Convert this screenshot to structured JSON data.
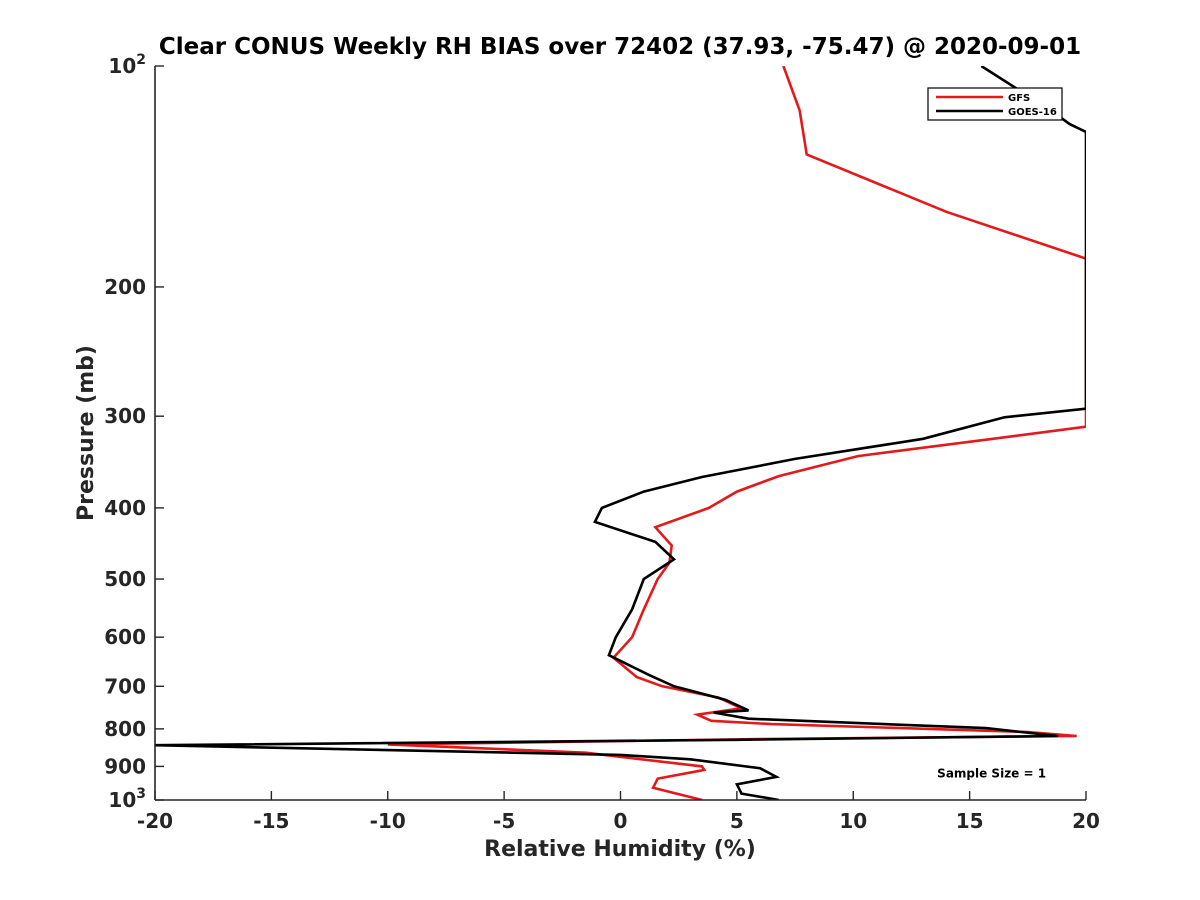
{
  "chart_data": {
    "type": "line",
    "title": "Clear CONUS Weekly RH BIAS over 72402 (37.93, -75.47) @ 2020-09-01",
    "xlabel": "Relative Humidity (%)",
    "ylabel": "Pressure (mb)",
    "xlim": [
      -20,
      20
    ],
    "ylim": [
      100,
      1000
    ],
    "yscale": "log",
    "y_reversed": true,
    "grid": false,
    "legend_position": "top-right",
    "x_ticks": [
      -20,
      -15,
      -10,
      -5,
      0,
      5,
      10,
      15,
      20
    ],
    "x_tick_labels": [
      "-20",
      "-15",
      "-10",
      "-5",
      "0",
      "5",
      "10",
      "15",
      "20"
    ],
    "y_ticks": [
      100,
      200,
      300,
      400,
      500,
      600,
      700,
      800,
      900,
      1000
    ],
    "y_tick_labels": [
      {
        "base": "10",
        "exp": "2"
      },
      {
        "base": "200",
        "exp": ""
      },
      {
        "base": "300",
        "exp": ""
      },
      {
        "base": "400",
        "exp": ""
      },
      {
        "base": "500",
        "exp": ""
      },
      {
        "base": "600",
        "exp": ""
      },
      {
        "base": "700",
        "exp": ""
      },
      {
        "base": "800",
        "exp": ""
      },
      {
        "base": "900",
        "exp": ""
      },
      {
        "base": "10",
        "exp": "3"
      }
    ],
    "series": [
      {
        "name": "GFS",
        "color": "#e31a1c",
        "points": [
          {
            "x": 7.0,
            "p": 100
          },
          {
            "x": 7.7,
            "p": 115
          },
          {
            "x": 8.0,
            "p": 132
          },
          {
            "x": 14.0,
            "p": 158
          },
          {
            "x": 20.0,
            "p": 183
          },
          {
            "x": 20.0,
            "p": 310
          },
          {
            "x": 16.0,
            "p": 322
          },
          {
            "x": 10.2,
            "p": 340
          },
          {
            "x": 6.8,
            "p": 362
          },
          {
            "x": 5.0,
            "p": 380
          },
          {
            "x": 3.8,
            "p": 400
          },
          {
            "x": 1.5,
            "p": 425
          },
          {
            "x": 2.2,
            "p": 450
          },
          {
            "x": 2.1,
            "p": 475
          },
          {
            "x": 1.6,
            "p": 500
          },
          {
            "x": 1.0,
            "p": 550
          },
          {
            "x": 0.5,
            "p": 600
          },
          {
            "x": -0.3,
            "p": 640
          },
          {
            "x": 0.7,
            "p": 680
          },
          {
            "x": 1.8,
            "p": 700
          },
          {
            "x": 4.2,
            "p": 725
          },
          {
            "x": 5.2,
            "p": 750
          },
          {
            "x": 3.3,
            "p": 765
          },
          {
            "x": 3.9,
            "p": 780
          },
          {
            "x": 6.5,
            "p": 788
          },
          {
            "x": 17.5,
            "p": 808
          },
          {
            "x": 19.6,
            "p": 818
          },
          {
            "x": 6.0,
            "p": 826
          },
          {
            "x": -10.0,
            "p": 840
          },
          {
            "x": -1.5,
            "p": 862
          },
          {
            "x": 3.5,
            "p": 900
          },
          {
            "x": 3.6,
            "p": 910
          },
          {
            "x": 1.6,
            "p": 935
          },
          {
            "x": 1.4,
            "p": 962
          },
          {
            "x": 3.5,
            "p": 1000
          }
        ]
      },
      {
        "name": "GOES-16",
        "color": "#000000",
        "points": [
          {
            "x": 15.5,
            "p": 100
          },
          {
            "x": 18.5,
            "p": 115
          },
          {
            "x": 19.3,
            "p": 120
          },
          {
            "x": 20.0,
            "p": 123
          },
          {
            "x": 20.0,
            "p": 293
          },
          {
            "x": 16.5,
            "p": 301
          },
          {
            "x": 13.0,
            "p": 322
          },
          {
            "x": 7.5,
            "p": 343
          },
          {
            "x": 3.5,
            "p": 363
          },
          {
            "x": 1.0,
            "p": 380
          },
          {
            "x": -0.8,
            "p": 400
          },
          {
            "x": -1.1,
            "p": 418
          },
          {
            "x": 1.5,
            "p": 445
          },
          {
            "x": 2.3,
            "p": 470
          },
          {
            "x": 1.0,
            "p": 500
          },
          {
            "x": 0.5,
            "p": 550
          },
          {
            "x": -0.2,
            "p": 600
          },
          {
            "x": -0.5,
            "p": 635
          },
          {
            "x": 1.2,
            "p": 675
          },
          {
            "x": 2.3,
            "p": 700
          },
          {
            "x": 4.5,
            "p": 730
          },
          {
            "x": 5.5,
            "p": 755
          },
          {
            "x": 4.0,
            "p": 760
          },
          {
            "x": 5.5,
            "p": 775
          },
          {
            "x": 15.7,
            "p": 798
          },
          {
            "x": 18.8,
            "p": 818
          },
          {
            "x": 5.0,
            "p": 828
          },
          {
            "x": -20.0,
            "p": 842
          },
          {
            "x": 0.0,
            "p": 868
          },
          {
            "x": 3.0,
            "p": 880
          },
          {
            "x": 6.0,
            "p": 905
          },
          {
            "x": 6.7,
            "p": 930
          },
          {
            "x": 5.0,
            "p": 952
          },
          {
            "x": 5.2,
            "p": 980
          },
          {
            "x": 6.8,
            "p": 1000
          }
        ]
      }
    ],
    "legend": [
      {
        "label": "GFS",
        "color": "#e31a1c"
      },
      {
        "label": "GOES-16",
        "color": "#000000"
      }
    ],
    "annotations": [
      {
        "text": "Sample Size = 1",
        "x": 15.0,
        "p": 920
      }
    ]
  }
}
